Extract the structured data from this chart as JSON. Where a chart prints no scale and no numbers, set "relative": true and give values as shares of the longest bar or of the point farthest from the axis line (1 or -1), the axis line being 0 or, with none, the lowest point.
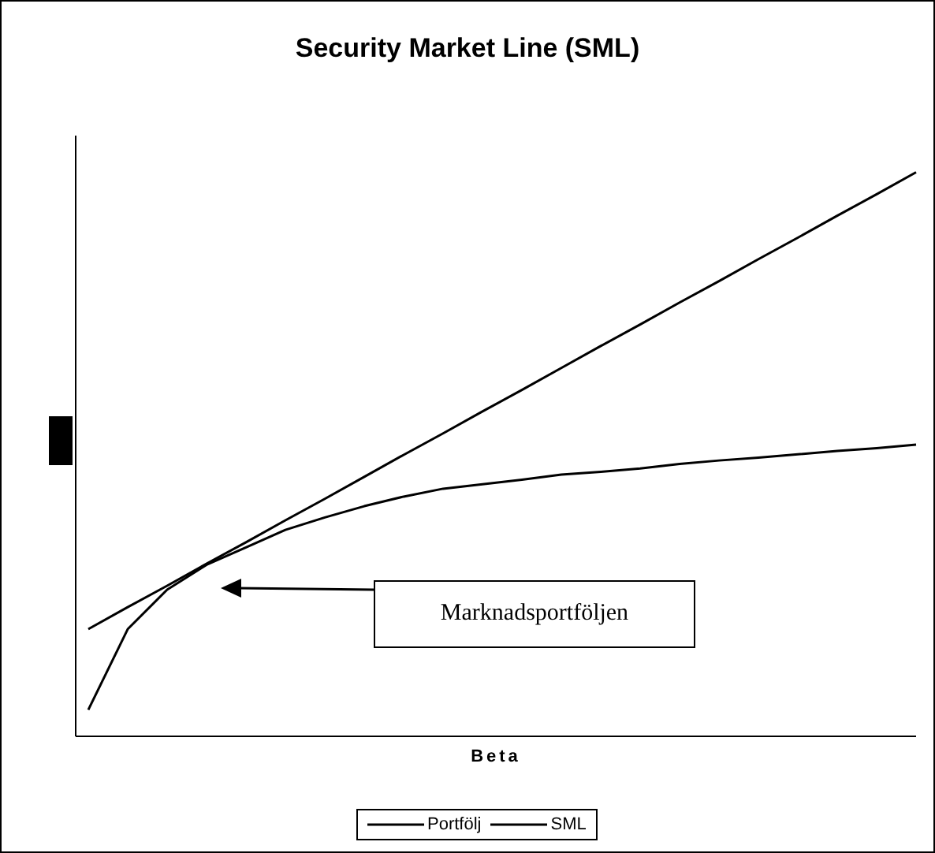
{
  "chart_data": {
    "type": "line",
    "title": "Security Market Line (SML)",
    "xlabel": "Beta",
    "relative": true,
    "legend": "bottom",
    "categories": [
      null,
      null,
      null,
      null,
      null,
      null,
      null,
      null,
      null,
      null,
      null,
      null,
      null,
      null,
      null,
      null,
      null,
      null,
      null,
      null,
      null,
      null
    ],
    "series": [
      {
        "name": "Portfölj",
        "color": "#000000",
        "values": [
          0.047,
          0.19,
          0.26,
          0.304,
          0.335,
          0.366,
          0.388,
          0.408,
          0.425,
          0.439,
          0.447,
          0.455,
          0.464,
          0.469,
          0.475,
          0.483,
          0.489,
          0.494,
          0.5,
          0.506,
          0.511,
          0.517
        ]
      },
      {
        "name": "SML",
        "color": "#000000",
        "values": [
          0.19,
          0.229,
          0.267,
          0.306,
          0.344,
          0.383,
          0.421,
          0.46,
          0.499,
          0.537,
          0.576,
          0.614,
          0.653,
          0.692,
          0.73,
          0.769,
          0.807,
          0.846,
          0.884,
          0.923,
          0.961,
          1.0
        ]
      }
    ],
    "annotations": [
      "Marknadsportföljen"
    ]
  }
}
